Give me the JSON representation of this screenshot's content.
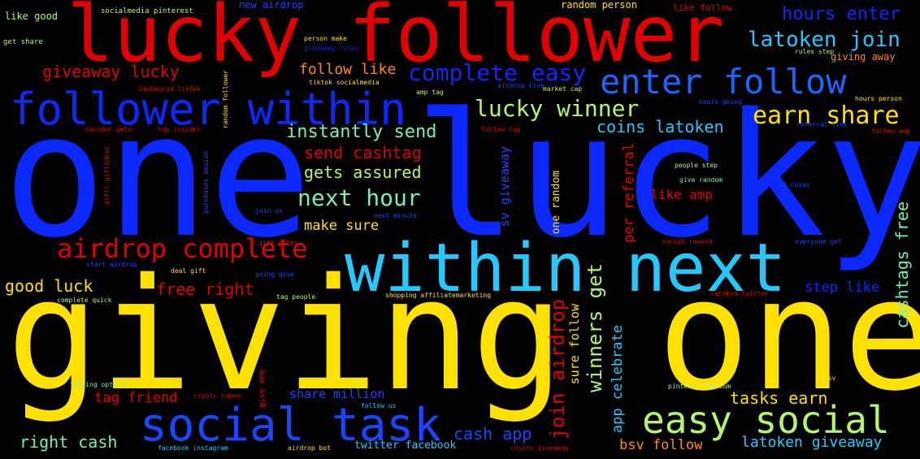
{
  "palette": {
    "blue": "#0a28ff",
    "yellow": "#ffe100",
    "red": "#e00000",
    "cyan": "#25c8ff",
    "lightgreen": "#b4f56e",
    "orange": "#ff8c00",
    "mint": "#78f0b4",
    "bg": "#000000"
  },
  "words": {
    "one_lucky": "one lucky",
    "giving_one": "giving one",
    "lucky_follower": "lucky follower",
    "within_next": "within next",
    "follower_within": "follower within",
    "social_task": "social task",
    "easy_social": "easy social",
    "enter_follow": "enter follow",
    "airdrop_complete": "airdrop complete",
    "complete_easy": "complete easy",
    "lucky_winner": "lucky winner",
    "earn_share": "earn share",
    "latoken_join": "latoken join",
    "hours_enter": "hours enter",
    "next_hour": "next hour",
    "giveaway_lucky": "giveaway lucky",
    "follow_like": "follow like",
    "instantly_send": "instantly send",
    "send_cashtag": "send cashtag",
    "gets_assured": "gets assured",
    "coins_latoken": "coins latoken",
    "good_luck": "good luck",
    "free_right": "free right",
    "make_sure": "make sure",
    "tag_friend": "tag friend",
    "right_cash": "right cash",
    "tasks_earn": "tasks earn",
    "cash_app": "cash app",
    "bsv_follow": "bsv follow",
    "latoken_giveaway": "latoken giveaway",
    "share_million": "share million",
    "like_amp": "like amp",
    "step_like": "step like",
    "like_good": "like good",
    "socialmedia_pinterest": "socialmedia pinterest",
    "new_airdrop": "new airdrop",
    "random_person": "random person",
    "like_follow": "like follow",
    "giving_away": "giving away",
    "get_share": "get share",
    "twitter_facebook": "twitter facebook",
    "facebook_instagram": "facebook instagram",
    "airdrop_bot": "airdrop bot",
    "trading_option": "trading option",
    "complete_quick": "complete quick",
    "tiktok_socialmedia": "tiktok socialmedia",
    "instagram_tiktok": "instagram tiktok",
    "shopping_affiliatemarketing": "shopping affiliatemarketing",
    "join_airdrop": "join airdrop",
    "winners_get": "winners get",
    "app_celebrate": "app celebrate",
    "sure_follow": "sure follow",
    "sv_giveaway": "sv giveaway",
    "one_random": "one random",
    "per_referral": "per referral",
    "cashtags_free": "cashtags free",
    "random_follower": "random follower",
    "give_one": "give one",
    "follow_us": "follow us",
    "gifts_giftideas": "gifts giftideas",
    "rules_step": "rules step",
    "people_step": "people step",
    "give_random": "give random",
    "follow_tag": "follow tag",
    "follow_amp": "follow amp",
    "hours_person": "hours person",
    "pinterest_medium": "pinterest medium",
    "latoken_twitter": "latoken twitter",
    "start_airdrop": "start airdrop",
    "deal_gift": "deal gift",
    "going_give": "going give",
    "tag_people": "tag people",
    "gift_gifts": "gift gifts",
    "amp_tag": "amp tag",
    "market_cap": "market cap",
    "airdrop_live": "airdrop live",
    "person_make": "person make",
    "giveaway_rules": "giveaway rules",
    "insider_gets": "insider gets",
    "top_insider": "top insider",
    "purchases_amazon": "purchases amazon",
    "social_reward": "social reward",
    "crypto_token": "crypto token",
    "crypto_giveaway": "crypto giveaway",
    "bsv": "bsv",
    "hours_going": "hours going",
    "join_us": "join us",
    "everyone_get": "everyone get",
    "v2_coins": "v2 coins",
    "next_minute": "next minute",
    "referral_link": "referral link"
  }
}
